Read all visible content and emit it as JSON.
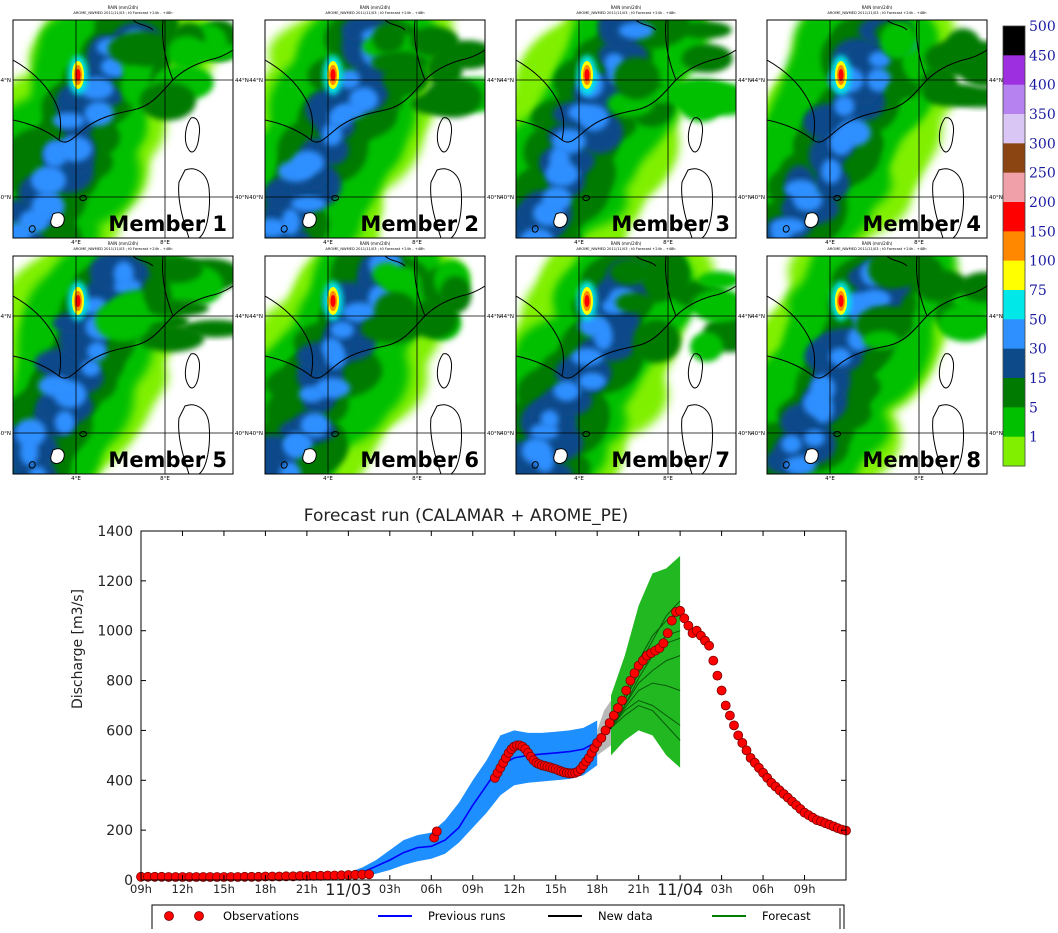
{
  "maps": {
    "panel_title_line1": "RAIN (mm/24h)",
    "panel_title_line2": "AROME_NWMED 2011/11/03 ; t0 Forecast +24h - +48h",
    "lat_labels": [
      "44°N",
      "40°N"
    ],
    "lon_labels": [
      "4°E",
      "8°E"
    ],
    "members": [
      {
        "label": "Member 1"
      },
      {
        "label": "Member 2"
      },
      {
        "label": "Member 3"
      },
      {
        "label": "Member 4"
      },
      {
        "label": "Member 5"
      },
      {
        "label": "Member 6"
      },
      {
        "label": "Member 7"
      },
      {
        "label": "Member 8"
      }
    ]
  },
  "colorbar": {
    "levels": [
      {
        "label": "500",
        "color": "#000000"
      },
      {
        "label": "450",
        "color": "#9e2fe0"
      },
      {
        "label": "400",
        "color": "#b682f0"
      },
      {
        "label": "350",
        "color": "#d9c6f5"
      },
      {
        "label": "300",
        "color": "#8b4513"
      },
      {
        "label": "250",
        "color": "#f0a0a8"
      },
      {
        "label": "200",
        "color": "#ff0000"
      },
      {
        "label": "150",
        "color": "#ff8800"
      },
      {
        "label": "100",
        "color": "#ffff00"
      },
      {
        "label": "75",
        "color": "#00e8e8"
      },
      {
        "label": "50",
        "color": "#2e8fff"
      },
      {
        "label": "30",
        "color": "#0c4a8a"
      },
      {
        "label": "15",
        "color": "#007a00"
      },
      {
        "label": "5",
        "color": "#00c000"
      },
      {
        "label": "1",
        "color": "#80f000"
      }
    ]
  },
  "chart_data": {
    "type": "line",
    "title": "Forecast run (CALAMAR + AROME_PE)",
    "ylabel": "Discharge [m3/s]",
    "xlabel": "",
    "ylim": [
      0,
      1400
    ],
    "yticks": [
      0,
      200,
      400,
      600,
      800,
      1000,
      1200,
      1400
    ],
    "x_unit": "hours from 11/02 09h",
    "xlim": [
      0,
      51
    ],
    "xticks": [
      {
        "x": 0,
        "label": "09h"
      },
      {
        "x": 3,
        "label": "12h"
      },
      {
        "x": 6,
        "label": "15h"
      },
      {
        "x": 9,
        "label": "18h"
      },
      {
        "x": 12,
        "label": "21h"
      },
      {
        "x": 15,
        "label": "11/03",
        "major": true
      },
      {
        "x": 18,
        "label": "03h"
      },
      {
        "x": 21,
        "label": "06h"
      },
      {
        "x": 24,
        "label": "09h"
      },
      {
        "x": 27,
        "label": "12h"
      },
      {
        "x": 30,
        "label": "15h"
      },
      {
        "x": 33,
        "label": "18h"
      },
      {
        "x": 36,
        "label": "21h"
      },
      {
        "x": 39,
        "label": "11/04",
        "major": true
      },
      {
        "x": 42,
        "label": "03h"
      },
      {
        "x": 45,
        "label": "06h"
      },
      {
        "x": 48,
        "label": "09h"
      }
    ],
    "grid": false,
    "legend_position": "bottom",
    "legend": [
      {
        "label": "Observations",
        "color": "#ff0000",
        "kind": "markers"
      },
      {
        "label": "Previous runs",
        "color": "#0000ff",
        "kind": "line"
      },
      {
        "label": "New data",
        "color": "#000000",
        "kind": "line"
      },
      {
        "label": "Forecast",
        "color": "#008000",
        "kind": "line"
      }
    ],
    "observations": {
      "x": [
        0,
        0.5,
        1,
        1.5,
        2,
        2.5,
        3,
        3.5,
        4,
        4.5,
        5,
        5.5,
        6,
        6.5,
        7,
        7.5,
        8,
        8.5,
        9,
        9.5,
        10,
        10.5,
        11,
        11.5,
        12,
        12.5,
        13,
        13.5,
        14,
        14.5,
        15,
        15.5,
        16,
        16.5,
        21.2,
        21.4,
        25.6,
        25.8,
        26,
        26.2,
        26.4,
        26.6,
        26.8,
        27,
        27.2,
        27.4,
        27.6,
        27.8,
        28,
        28.2,
        28.4,
        28.6,
        28.8,
        29,
        29.2,
        29.4,
        29.6,
        29.8,
        30,
        30.2,
        30.4,
        30.6,
        30.8,
        31,
        31.2,
        31.4,
        31.6,
        31.8,
        32,
        32.2,
        32.4,
        32.6,
        32.8,
        33,
        33.3,
        33.6,
        33.9,
        34.2,
        34.5,
        34.8,
        35.1,
        35.4,
        35.7,
        36,
        36.3,
        36.6,
        36.9,
        37.2,
        37.5,
        37.8,
        38.1,
        38.4,
        38.7,
        39,
        39.3,
        39.6,
        39.9,
        40.2,
        40.5,
        40.8,
        41.1,
        41.4,
        41.7,
        42,
        42.3,
        42.6,
        42.9,
        43.2,
        43.5,
        43.8,
        44.1,
        44.4,
        44.7,
        45,
        45.3,
        45.6,
        45.9,
        46.2,
        46.5,
        46.8,
        47.1,
        47.4,
        47.7,
        48,
        48.3,
        48.6,
        48.9,
        49.2,
        49.5,
        49.8,
        50.1,
        50.4,
        50.7,
        51
      ],
      "y": [
        13,
        13,
        13,
        13,
        12,
        12,
        12,
        12,
        12,
        12,
        12,
        12,
        12,
        12,
        12,
        13,
        13,
        13,
        14,
        14,
        14,
        15,
        15,
        16,
        16,
        17,
        17,
        18,
        18,
        19,
        20,
        21,
        22,
        23,
        170,
        195,
        410,
        430,
        450,
        470,
        490,
        510,
        525,
        535,
        540,
        540,
        535,
        525,
        510,
        495,
        480,
        470,
        465,
        460,
        458,
        455,
        452,
        448,
        445,
        440,
        436,
        432,
        430,
        428,
        428,
        430,
        435,
        445,
        460,
        475,
        490,
        510,
        530,
        550,
        570,
        600,
        630,
        660,
        690,
        720,
        760,
        800,
        830,
        860,
        880,
        900,
        910,
        920,
        930,
        950,
        990,
        1040,
        1075,
        1080,
        1050,
        1020,
        990,
        1000,
        980,
        960,
        940,
        880,
        820,
        760,
        700,
        660,
        620,
        580,
        550,
        520,
        490,
        470,
        450,
        430,
        410,
        390,
        375,
        360,
        345,
        330,
        315,
        300,
        285,
        270,
        260,
        250,
        240,
        235,
        228,
        222,
        215,
        208,
        202,
        198
      ]
    },
    "previous_runs": {
      "x": [
        15,
        16,
        17,
        18,
        19,
        20,
        21,
        22,
        23,
        24,
        25,
        26,
        27,
        28,
        29,
        30,
        31,
        32,
        33
      ],
      "median": [
        18,
        30,
        55,
        80,
        110,
        130,
        135,
        160,
        210,
        300,
        380,
        460,
        490,
        500,
        505,
        510,
        515,
        525,
        555
      ],
      "lower": [
        10,
        15,
        25,
        40,
        60,
        75,
        85,
        105,
        150,
        210,
        270,
        340,
        380,
        390,
        395,
        400,
        405,
        420,
        460
      ],
      "upper": [
        30,
        50,
        80,
        120,
        160,
        180,
        190,
        240,
        310,
        400,
        480,
        580,
        600,
        590,
        590,
        595,
        600,
        610,
        640
      ]
    },
    "new_data": {
      "x": [
        33,
        33.5,
        34
      ],
      "y": [
        555,
        590,
        610
      ],
      "band_lower": [
        500,
        520,
        540
      ],
      "band_upper": [
        600,
        680,
        720
      ]
    },
    "forecast": {
      "x": [
        34,
        35,
        36,
        37,
        38,
        39
      ],
      "lower": [
        500,
        560,
        600,
        580,
        500,
        450
      ],
      "upper": [
        740,
        900,
        1100,
        1230,
        1250,
        1300
      ],
      "members": [
        [
          610,
          700,
          790,
          840,
          880,
          900
        ],
        [
          610,
          690,
          760,
          790,
          780,
          760
        ],
        [
          610,
          720,
          830,
          920,
          980,
          1000
        ],
        [
          610,
          680,
          720,
          700,
          660,
          620
        ],
        [
          610,
          740,
          880,
          980,
          1040,
          1080
        ],
        [
          610,
          700,
          810,
          900,
          950,
          970
        ],
        [
          610,
          660,
          700,
          680,
          620,
          560
        ],
        [
          610,
          720,
          860,
          960,
          1060,
          1120
        ]
      ]
    }
  }
}
